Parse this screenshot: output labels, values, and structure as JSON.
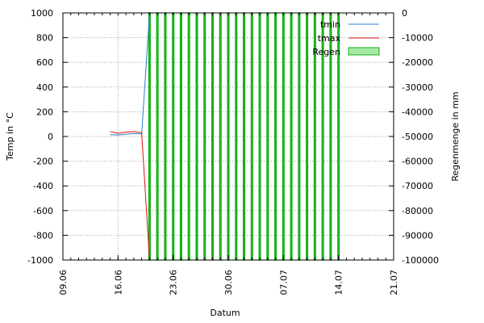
{
  "chart_data": {
    "type": "line",
    "xlabel": "Datum",
    "ylabel": "Temp in °C",
    "y2label": "Regenmenge in mm",
    "x_ticks": [
      "09.06",
      "16.06",
      "23.06",
      "30.06",
      "07.07",
      "14.07",
      "21.07"
    ],
    "x_tick_days": [
      0,
      7,
      14,
      21,
      28,
      35,
      42
    ],
    "x_range_days": [
      0,
      42
    ],
    "ylim": [
      -1000,
      1000
    ],
    "y_ticks": [
      -1000,
      -800,
      -600,
      -400,
      -200,
      0,
      200,
      400,
      600,
      800,
      1000
    ],
    "y2lim": [
      -100000,
      0
    ],
    "y2_ticks": [
      -100000,
      -90000,
      -80000,
      -70000,
      -60000,
      -50000,
      -40000,
      -30000,
      -20000,
      -10000,
      0
    ],
    "grid": true,
    "legend_position": "top-right",
    "series": [
      {
        "name": "tmin",
        "color": "#2a7fd4",
        "axis": "y",
        "points": [
          [
            6.0,
            15
          ],
          [
            7.0,
            12
          ],
          [
            8.0,
            18
          ],
          [
            9.0,
            25
          ],
          [
            10.0,
            20
          ],
          [
            11.0,
            1000
          ]
        ]
      },
      {
        "name": "tmax",
        "color": "#e01010",
        "axis": "y",
        "points": [
          [
            6.0,
            40
          ],
          [
            7.0,
            25
          ],
          [
            8.0,
            35
          ],
          [
            9.0,
            40
          ],
          [
            10.0,
            30
          ],
          [
            11.0,
            -1000
          ]
        ]
      },
      {
        "name": "Regen",
        "type": "bar",
        "color": "#11b011",
        "fill": "#a6e8a6",
        "axis": "y2",
        "values_note": "",
        "bars": [
          {
            "x": 11,
            "y": -100000
          },
          {
            "x": 12,
            "y": -100000
          },
          {
            "x": 13,
            "y": -100000
          },
          {
            "x": 14,
            "y": -100000
          },
          {
            "x": 15,
            "y": -100000
          },
          {
            "x": 16,
            "y": -100000
          },
          {
            "x": 17,
            "y": -100000
          },
          {
            "x": 18,
            "y": -100000
          },
          {
            "x": 19,
            "y": -100000
          },
          {
            "x": 20,
            "y": -100000
          },
          {
            "x": 21,
            "y": -100000
          },
          {
            "x": 22,
            "y": -100000
          },
          {
            "x": 23,
            "y": -100000
          },
          {
            "x": 24,
            "y": -100000
          },
          {
            "x": 25,
            "y": -100000
          },
          {
            "x": 26,
            "y": -100000
          },
          {
            "x": 27,
            "y": -100000
          },
          {
            "x": 28,
            "y": -100000
          },
          {
            "x": 29,
            "y": -100000
          },
          {
            "x": 30,
            "y": -100000
          },
          {
            "x": 31,
            "y": -100000
          },
          {
            "x": 32,
            "y": -100000
          },
          {
            "x": 33,
            "y": -100000
          },
          {
            "x": 34,
            "y": -100000
          },
          {
            "x": 35,
            "y": -100000
          }
        ]
      }
    ]
  }
}
